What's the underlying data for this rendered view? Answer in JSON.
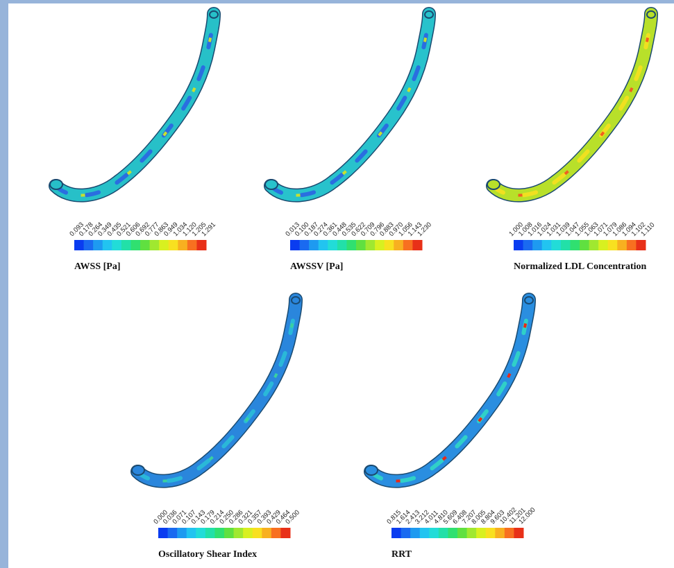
{
  "panels": [
    {
      "label": "AWSS [Pa]",
      "ticks": [
        "0.093",
        "0.178",
        "0.264",
        "0.349",
        "0.435",
        "0.521",
        "0.606",
        "0.692",
        "0.777",
        "0.863",
        "0.949",
        "1.034",
        "1.120",
        "1.205",
        "1.291"
      ]
    },
    {
      "label": "AWSSV [Pa]",
      "ticks": [
        "0.013",
        "0.100",
        "0.187",
        "0.274",
        "0.361",
        "0.448",
        "0.535",
        "0.622",
        "0.709",
        "0.796",
        "0.883",
        "0.970",
        "1.056",
        "1.143",
        "1.230"
      ]
    },
    {
      "label": "Normalized LDL Concentration",
      "ticks": [
        "1.000",
        "1.008",
        "1.016",
        "1.024",
        "1.031",
        "1.039",
        "1.047",
        "1.055",
        "1.063",
        "1.071",
        "1.079",
        "1.086",
        "1.094",
        "1.102",
        "1.110"
      ]
    },
    {
      "label": "Oscillatory Shear Index",
      "ticks": [
        "0.000",
        "0.036",
        "0.071",
        "0.107",
        "0.143",
        "0.179",
        "0.214",
        "0.250",
        "0.286",
        "0.321",
        "0.357",
        "0.393",
        "0.429",
        "0.464",
        "0.500"
      ]
    },
    {
      "label": "RRT",
      "ticks": [
        "0.815",
        "1.614",
        "2.413",
        "3.212",
        "4.011",
        "4.810",
        "5.609",
        "6.408",
        "7.207",
        "8.005",
        "8.804",
        "9.603",
        "10.402",
        "11.201",
        "12.000"
      ]
    }
  ]
}
